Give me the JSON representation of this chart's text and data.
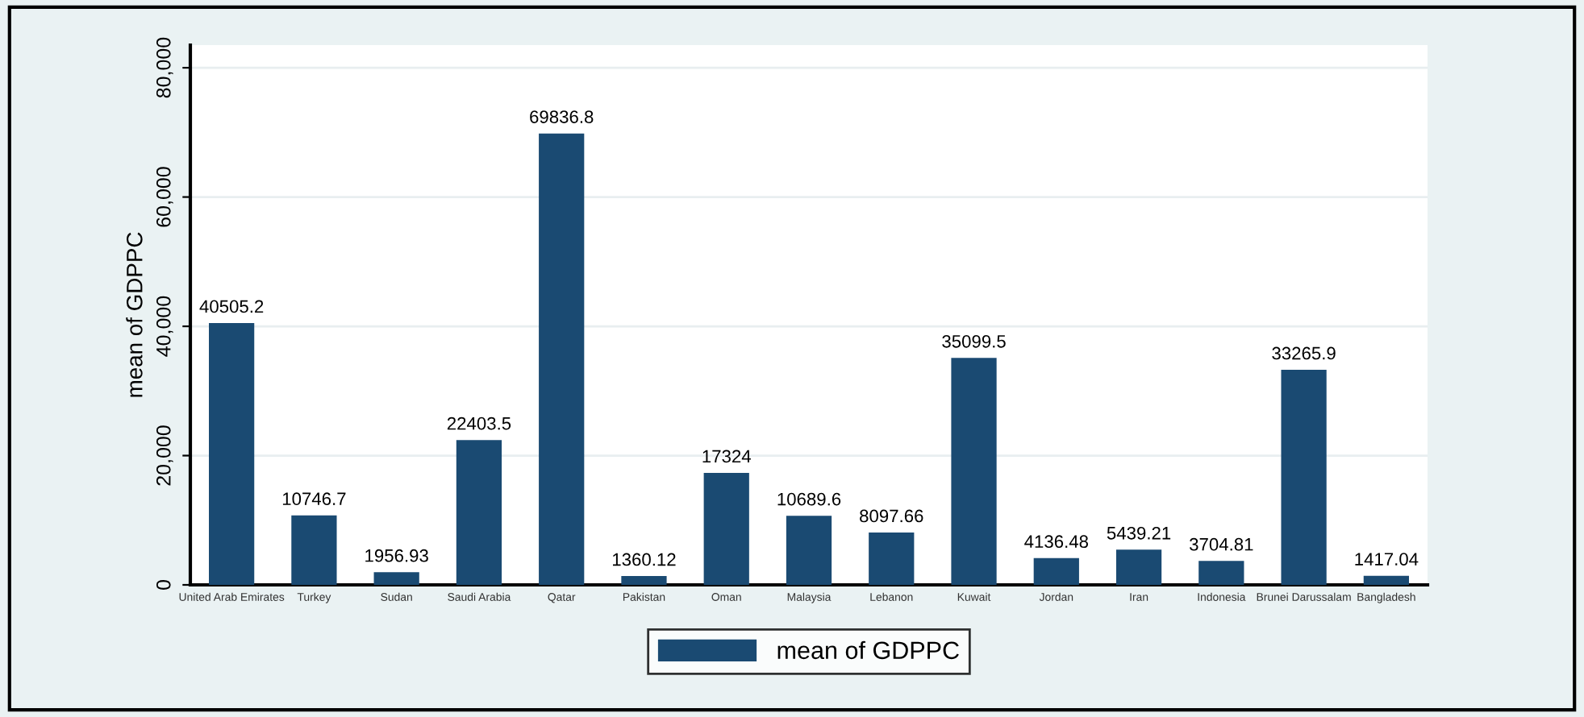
{
  "chart_data": {
    "type": "bar",
    "ylabel": "mean of GDPPC",
    "categories": [
      "United Arab Emirates",
      "Turkey",
      "Sudan",
      "Saudi Arabia",
      "Qatar",
      "Pakistan",
      "Oman",
      "Malaysia",
      "Lebanon",
      "Kuwait",
      "Jordan",
      "Iran",
      "Indonesia",
      "Brunei Darussalam",
      "Bangladesh"
    ],
    "series": [
      {
        "name": "mean of GDPPC",
        "color": "#1a4a72",
        "values": [
          40505.2,
          10746.7,
          1956.93,
          22403.5,
          69836.8,
          1360.12,
          17324,
          10689.6,
          8097.66,
          35099.5,
          4136.48,
          5439.21,
          3704.81,
          33265.9,
          1417.04
        ]
      }
    ],
    "ylim": [
      0,
      83500
    ],
    "yticks": [
      0,
      {
        "value": 20000,
        "label": "20,000"
      },
      {
        "value": 40000,
        "label": "40,000"
      },
      {
        "value": 60000,
        "label": "60,000"
      },
      {
        "value": 80000,
        "label": "80,000"
      }
    ],
    "grid": "y",
    "legend": "bottom",
    "data_labels": true
  }
}
